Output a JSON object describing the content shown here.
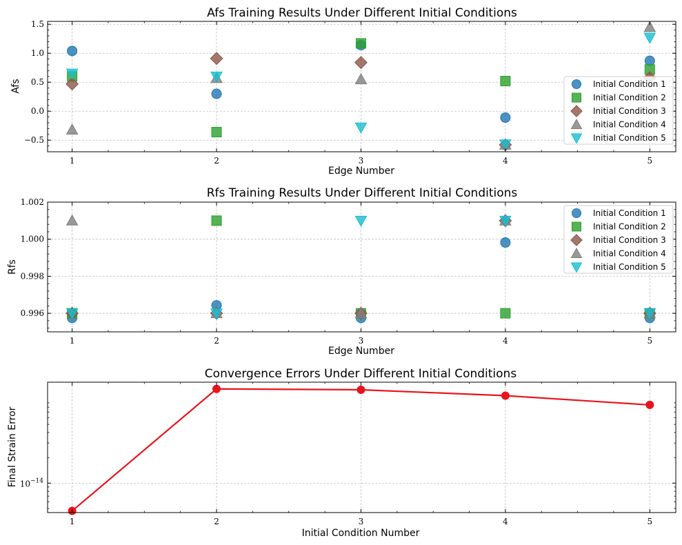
{
  "chart_data": [
    {
      "type": "scatter",
      "title": "Afs Training Results Under Different Initial Conditions",
      "xlabel": "Edge Number",
      "ylabel": "Afs",
      "x": [
        1,
        2,
        3,
        4,
        5
      ],
      "xlim": [
        0.83,
        5.18
      ],
      "ylim": [
        -0.7,
        1.55
      ],
      "yticks": [
        -0.5,
        0.0,
        0.5,
        1.0,
        1.5
      ],
      "yticklabels": [
        "−0.5",
        "0.0",
        "0.5",
        "1.0",
        "1.5"
      ],
      "grid": true,
      "legend": "right",
      "series": [
        {
          "name": "Initial Condition 1",
          "marker": "circle",
          "color": "#1f77b4",
          "values": [
            1.04,
            0.3,
            1.14,
            -0.11,
            0.87
          ]
        },
        {
          "name": "Initial Condition 2",
          "marker": "square",
          "color": "#2ca02c",
          "values": [
            0.6,
            -0.36,
            1.17,
            0.52,
            0.72
          ]
        },
        {
          "name": "Initial Condition 3",
          "marker": "diamond",
          "color": "#8c564b",
          "values": [
            0.47,
            0.91,
            0.84,
            -0.58,
            0.58
          ]
        },
        {
          "name": "Initial Condition 4",
          "marker": "triangle-up",
          "color": "#7f7f7f",
          "values": [
            -0.32,
            0.57,
            0.55,
            -0.58,
            1.45
          ]
        },
        {
          "name": "Initial Condition 5",
          "marker": "triangle-down",
          "color": "#17becf",
          "values": [
            0.65,
            0.6,
            -0.28,
            -0.57,
            1.27
          ]
        }
      ]
    },
    {
      "type": "scatter",
      "title": "Rfs Training Results Under Different Initial Conditions",
      "xlabel": "Edge Number",
      "ylabel": "Rfs",
      "x": [
        1,
        2,
        3,
        4,
        5
      ],
      "xlim": [
        0.83,
        5.18
      ],
      "ylim": [
        0.995,
        1.002
      ],
      "yticks": [
        0.996,
        0.998,
        1.0,
        1.002
      ],
      "yticklabels": [
        "0.996",
        "0.998",
        "1.000",
        "1.002"
      ],
      "grid": true,
      "legend": "top-right",
      "series": [
        {
          "name": "Initial Condition 1",
          "marker": "circle",
          "color": "#1f77b4",
          "values": [
            0.99575,
            0.99643,
            0.99575,
            0.99982,
            0.99575
          ]
        },
        {
          "name": "Initial Condition 2",
          "marker": "square",
          "color": "#2ca02c",
          "values": [
            0.996,
            1.001,
            0.996,
            0.996,
            0.996
          ]
        },
        {
          "name": "Initial Condition 3",
          "marker": "diamond",
          "color": "#8c564b",
          "values": [
            0.996,
            0.996,
            0.996,
            1.001,
            0.996
          ]
        },
        {
          "name": "Initial Condition 4",
          "marker": "triangle-up",
          "color": "#7f7f7f",
          "values": [
            1.001,
            0.996,
            0.996,
            1.001,
            0.996
          ]
        },
        {
          "name": "Initial Condition 5",
          "marker": "triangle-down",
          "color": "#17becf",
          "values": [
            0.996,
            0.996,
            1.001,
            1.001,
            0.996
          ]
        }
      ]
    },
    {
      "type": "line",
      "title": "Convergence Errors Under Different Initial Conditions",
      "xlabel": "Initial Condition Number",
      "ylabel": "Final Strain Error",
      "yscale": "log",
      "x": [
        1,
        2,
        3,
        4,
        5
      ],
      "xlim": [
        0.83,
        5.18
      ],
      "ylim_log10": [
        -14.35,
        -12.8
      ],
      "yticks_log10": [
        -14
      ],
      "ytick_base": "10",
      "ytick_exponent": "−14",
      "grid": true,
      "series": [
        {
          "color": "#e8141c",
          "values_log10": [
            -14.33,
            -12.88,
            -12.89,
            -12.96,
            -13.07
          ]
        }
      ]
    }
  ]
}
